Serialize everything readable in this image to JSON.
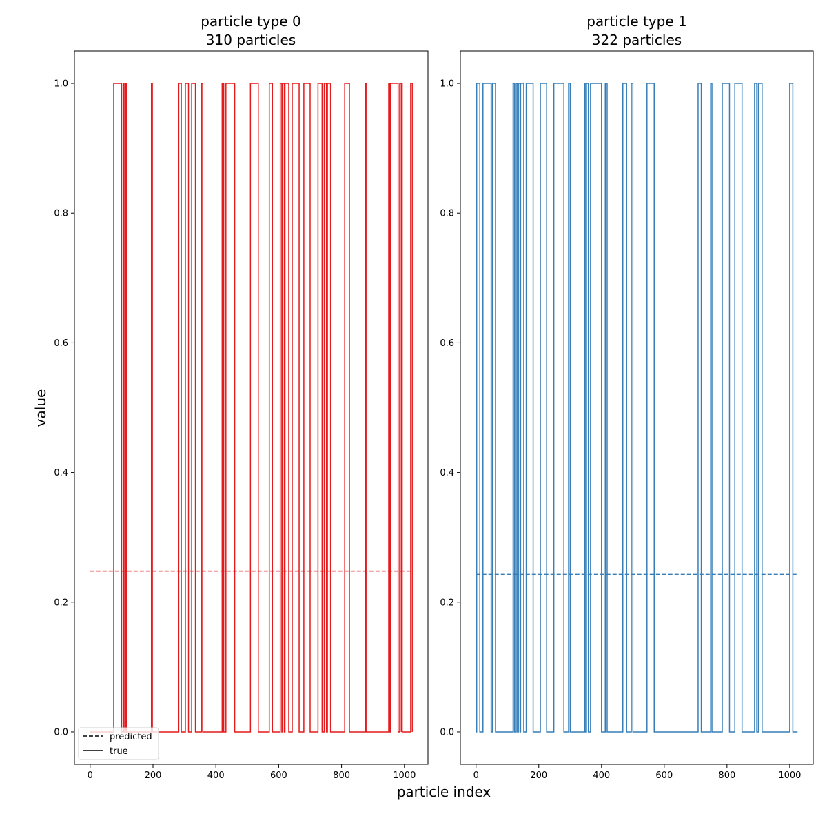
{
  "figure": {
    "xlabel": "particle index",
    "ylabel": "value"
  },
  "legend": {
    "placement": "lower-left",
    "entries": [
      {
        "label": "predicted",
        "style": "dashed"
      },
      {
        "label": "true",
        "style": "solid"
      }
    ]
  },
  "chart_data": [
    {
      "type": "line",
      "title_line1": "particle type 0",
      "title_line2": "310 particles",
      "color": "#e41a1c",
      "xlim": [
        -50,
        1075
      ],
      "ylim": [
        -0.05,
        1.05
      ],
      "xticks": [
        "0",
        "200",
        "400",
        "600",
        "800",
        "1000"
      ],
      "yticks": [
        "0.0",
        "0.2",
        "0.4",
        "0.6",
        "0.8",
        "1.0"
      ],
      "predicted": 0.248,
      "true_segments": [
        [
          75,
          100
        ],
        [
          105,
          108
        ],
        [
          112,
          115
        ],
        [
          195,
          198
        ],
        [
          282,
          290
        ],
        [
          303,
          313
        ],
        [
          323,
          335
        ],
        [
          354,
          358
        ],
        [
          420,
          425
        ],
        [
          432,
          460
        ],
        [
          510,
          535
        ],
        [
          570,
          580
        ],
        [
          605,
          610
        ],
        [
          613,
          618
        ],
        [
          620,
          632
        ],
        [
          643,
          665
        ],
        [
          680,
          700
        ],
        [
          725,
          738
        ],
        [
          745,
          752
        ],
        [
          755,
          765
        ],
        [
          810,
          825
        ],
        [
          875,
          878
        ],
        [
          950,
          953
        ],
        [
          955,
          980
        ],
        [
          985,
          990
        ],
        [
          990,
          993
        ],
        [
          1020,
          1025
        ]
      ],
      "x_end": 1025
    },
    {
      "type": "line",
      "title_line1": "particle type 1",
      "title_line2": "322 particles",
      "color": "#377eb8",
      "xlim": [
        -50,
        1075
      ],
      "ylim": [
        -0.05,
        1.05
      ],
      "xticks": [
        "0",
        "200",
        "400",
        "600",
        "800",
        "1000"
      ],
      "yticks": [
        "0.0",
        "0.2",
        "0.4",
        "0.6",
        "0.8",
        "1.0"
      ],
      "predicted": 0.243,
      "true_segments": [
        [
          2,
          12
        ],
        [
          22,
          48
        ],
        [
          52,
          62
        ],
        [
          118,
          122
        ],
        [
          128,
          132
        ],
        [
          135,
          140
        ],
        [
          142,
          152
        ],
        [
          160,
          182
        ],
        [
          205,
          225
        ],
        [
          248,
          280
        ],
        [
          295,
          300
        ],
        [
          345,
          348
        ],
        [
          352,
          358
        ],
        [
          365,
          400
        ],
        [
          412,
          418
        ],
        [
          468,
          480
        ],
        [
          495,
          500
        ],
        [
          545,
          568
        ],
        [
          708,
          718
        ],
        [
          748,
          752
        ],
        [
          785,
          808
        ],
        [
          825,
          848
        ],
        [
          888,
          895
        ],
        [
          900,
          912
        ],
        [
          1000,
          1010
        ]
      ],
      "x_end": 1025
    }
  ]
}
